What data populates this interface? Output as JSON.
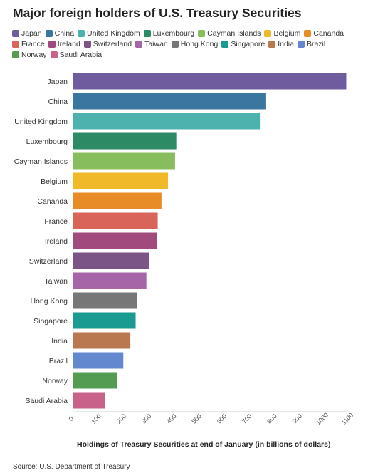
{
  "chart_data": {
    "type": "bar",
    "orientation": "horizontal",
    "title": "Major foreign holders of U.S. Treasury Securities",
    "xlabel": "Holdings of Treasury Securities at end of January (in billions of dollars)",
    "ylabel": "",
    "xlim": [
      0,
      1100
    ],
    "xticks": [
      0,
      100,
      200,
      300,
      400,
      500,
      600,
      700,
      800,
      900,
      1000,
      1100
    ],
    "grid": false,
    "legend_position": "top",
    "categories": [
      "Japan",
      "China",
      "United Kingdom",
      "Luxembourg",
      "Cayman Islands",
      "Belgium",
      "Cananda",
      "France",
      "Ireland",
      "Switzerland",
      "Taiwan",
      "Hong Kong",
      "Singapore",
      "India",
      "Brazil",
      "Norway",
      "Saudi Arabia"
    ],
    "values": [
      1090,
      768,
      746,
      413,
      408,
      380,
      354,
      339,
      335,
      306,
      294,
      258,
      251,
      230,
      202,
      176,
      129
    ],
    "colors": [
      "#6f5c9e",
      "#3b76a0",
      "#4db1ae",
      "#2c8a65",
      "#88bd5e",
      "#f0b929",
      "#e78c26",
      "#d9645a",
      "#a14a7e",
      "#7b5586",
      "#a565a7",
      "#777777",
      "#1a9b91",
      "#b97850",
      "#6388d0",
      "#559c53",
      "#c9628a"
    ]
  },
  "source": "Source: U.S. Department of Treasury"
}
